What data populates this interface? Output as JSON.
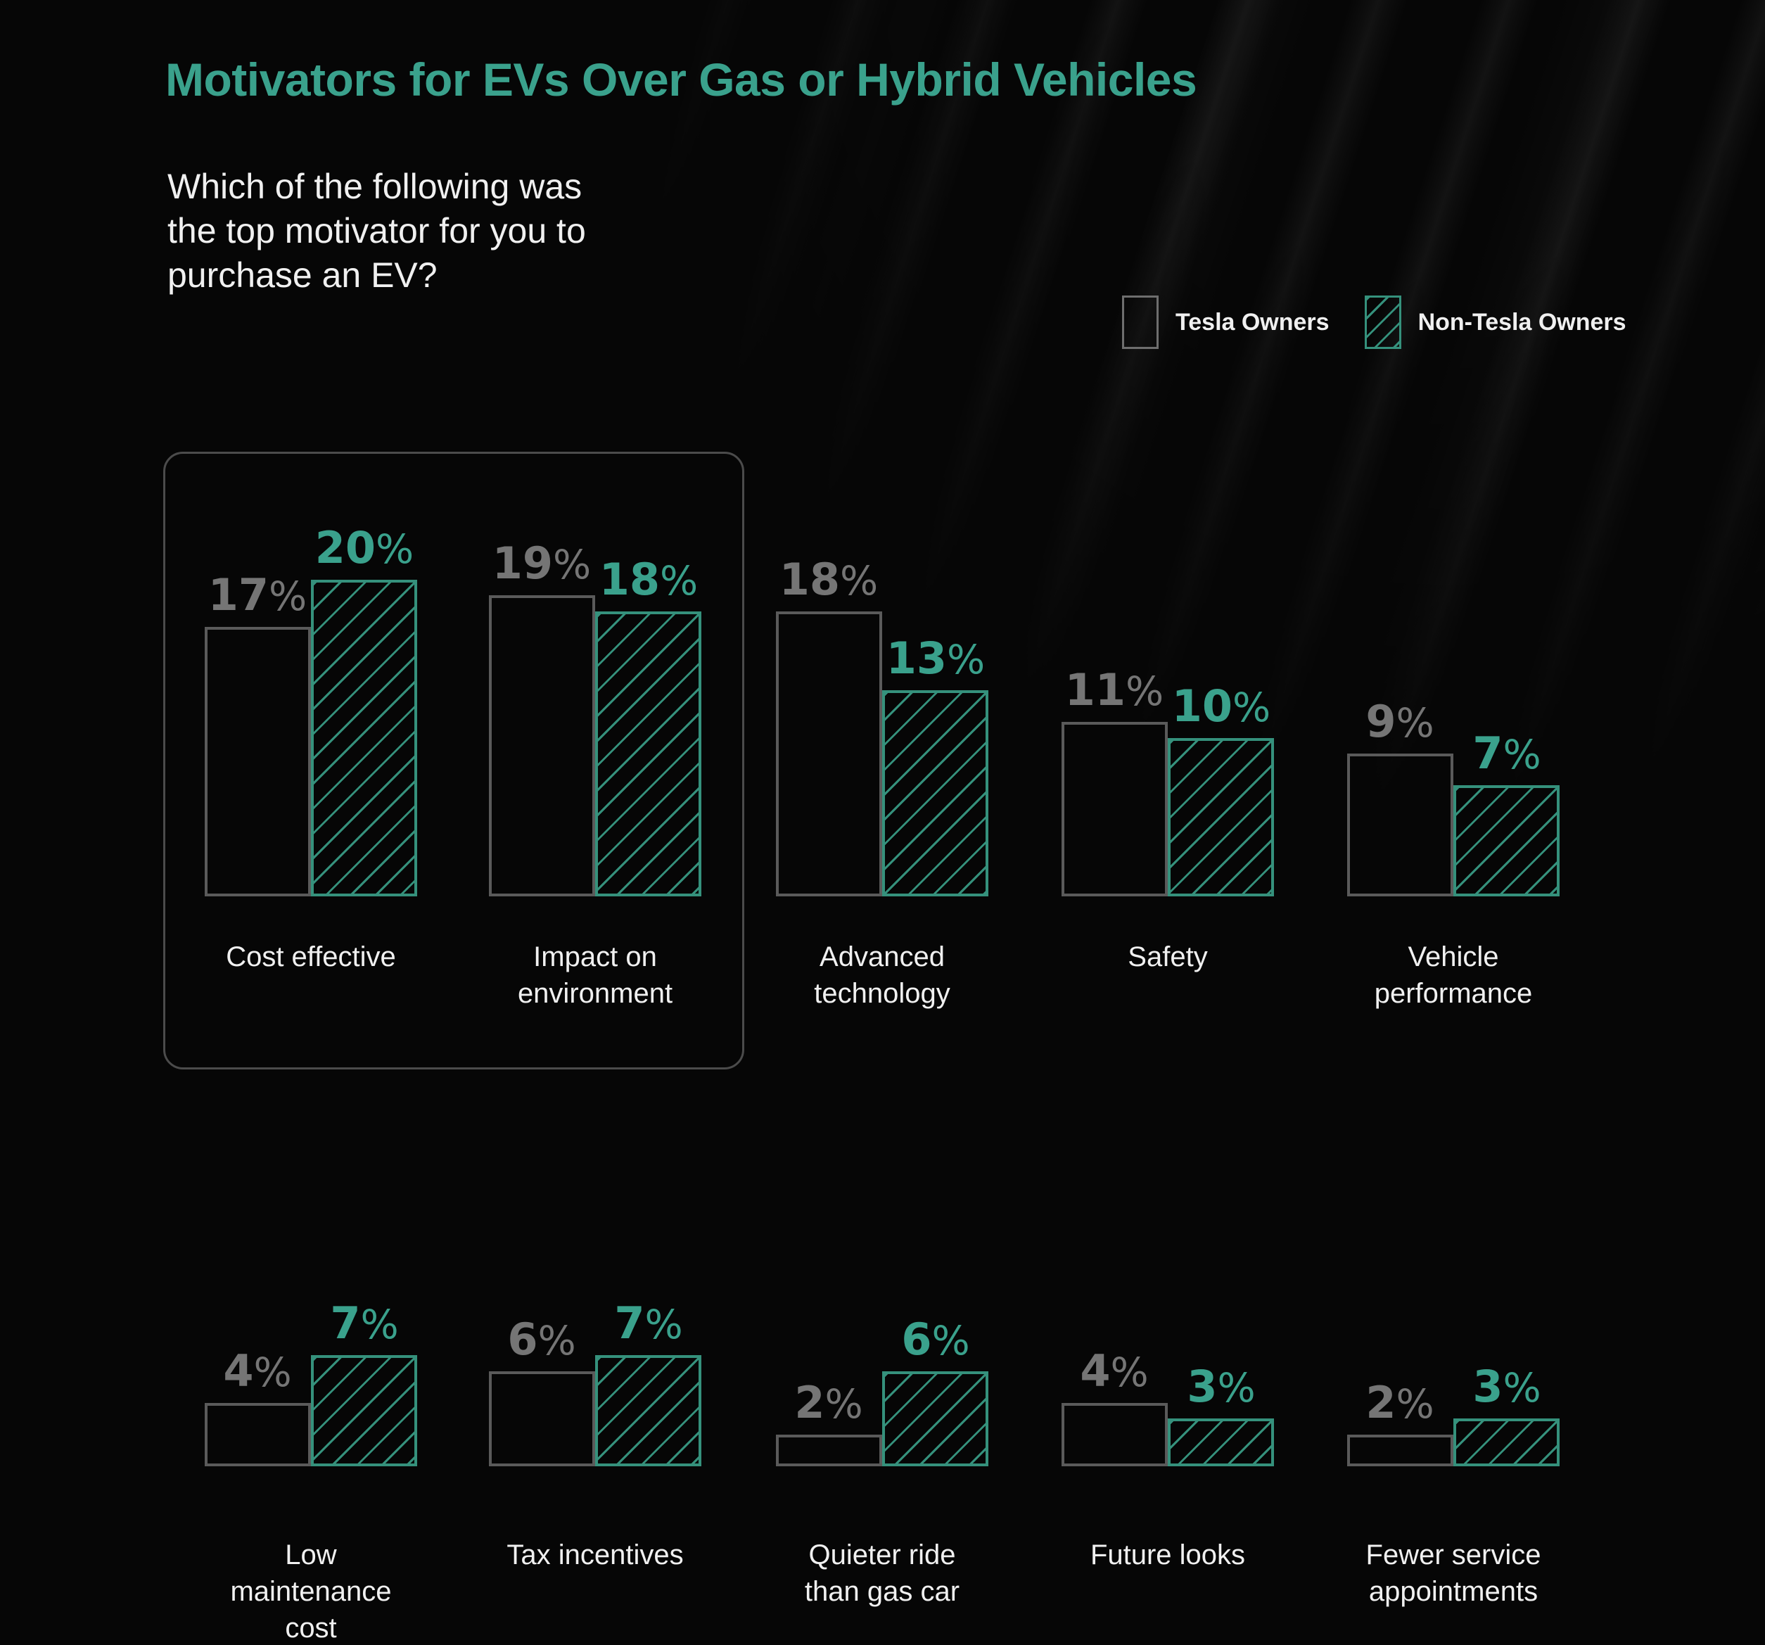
{
  "title": "Motivators for EVs Over Gas or Hybrid Vehicles",
  "subtitle": {
    "line1": "Which of the following was",
    "line2": "the top motivator for you to",
    "line3": "purchase an EV?"
  },
  "legend": {
    "tesla_label": "Tesla Owners",
    "non_tesla_label": "Non-Tesla Owners"
  },
  "colors": {
    "accent_teal": "#3aa18c",
    "bar_teal_stroke": "#35917c",
    "gray_text": "#757575",
    "bar_gray_stroke": "#5a5a5a",
    "highlight_border": "#4b4b4b",
    "text_white": "#f0f0f0",
    "background": "#060606"
  },
  "chart_data": {
    "type": "bar",
    "unit": "%",
    "title": "Motivators for EVs Over Gas or Hybrid Vehicles",
    "categories": [
      "Cost effective",
      "Impact on environment",
      "Advanced technology",
      "Safety",
      "Vehicle performance",
      "Low maintenance cost",
      "Tax incentives",
      "Quieter ride than gas car",
      "Future looks",
      "Fewer service appointments"
    ],
    "category_label_lines": [
      [
        "Cost effective"
      ],
      [
        "Impact on",
        "environment"
      ],
      [
        "Advanced",
        "technology"
      ],
      [
        "Safety"
      ],
      [
        "Vehicle",
        "performance"
      ],
      [
        "Low",
        "maintenance",
        "cost"
      ],
      [
        "Tax incentives"
      ],
      [
        "Quieter ride",
        "than gas car"
      ],
      [
        "Future looks"
      ],
      [
        "Fewer service",
        "appointments"
      ]
    ],
    "series": [
      {
        "name": "Tesla Owners",
        "style": "gray-outline",
        "values": [
          17,
          19,
          18,
          11,
          9,
          4,
          6,
          2,
          4,
          2
        ]
      },
      {
        "name": "Non-Tesla Owners",
        "style": "teal-hatched",
        "values": [
          20,
          18,
          13,
          10,
          7,
          7,
          7,
          6,
          3,
          3
        ]
      }
    ],
    "rows": [
      [
        "Cost effective",
        "Impact on environment",
        "Advanced technology",
        "Safety",
        "Vehicle performance"
      ],
      [
        "Low maintenance cost",
        "Tax incentives",
        "Quieter ride than gas car",
        "Future looks",
        "Fewer service appointments"
      ]
    ],
    "highlighted_categories": [
      "Cost effective",
      "Impact on environment"
    ],
    "legend_position": "top-right",
    "value_range": [
      0,
      20
    ],
    "grid": false
  }
}
